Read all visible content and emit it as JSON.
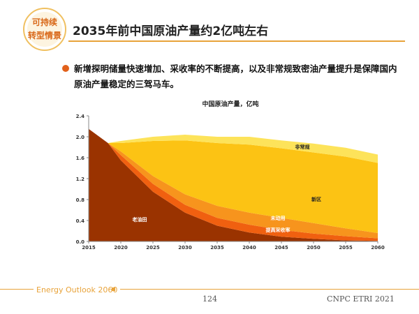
{
  "header": {
    "logo": [
      "可持续",
      "转型情景"
    ],
    "title": "2035年前中国原油产量约2亿吨左右"
  },
  "bullet": "新增探明储量快速增加、采收率的不断提高，以及非常规致密油产量提升是保障国内原油产量稳定的三驾马车。",
  "chart_data": {
    "type": "stacked_area",
    "title": "中国原油产量，亿吨",
    "x": [
      2015,
      2018,
      2020,
      2025,
      2030,
      2035,
      2040,
      2045,
      2050,
      2055,
      2060
    ],
    "xlim": [
      2015,
      2060
    ],
    "xticks": [
      2015,
      2020,
      2025,
      2030,
      2035,
      2040,
      2045,
      2050,
      2055,
      2060
    ],
    "ylim": [
      0,
      2.4
    ],
    "yticks": [
      {
        "value": 0,
        "label": "0.0"
      },
      0.4,
      0.8,
      1.2,
      1.6,
      {
        "value": 2,
        "label": "2.0"
      },
      2.4
    ],
    "series": [
      {
        "name": "老油田",
        "color": "#9a3300",
        "values": [
          2.15,
          1.88,
          1.55,
          0.95,
          0.55,
          0.3,
          0.17,
          0.09,
          0.05,
          0.02,
          0.01
        ]
      },
      {
        "name": "提高采收率",
        "color": "#f06010",
        "values": [
          0,
          0,
          0.1,
          0.15,
          0.15,
          0.15,
          0.15,
          0.13,
          0.1,
          0.08,
          0.05
        ]
      },
      {
        "name": "未动用",
        "color": "#f7941d",
        "values": [
          0,
          0,
          0.07,
          0.15,
          0.2,
          0.23,
          0.23,
          0.23,
          0.2,
          0.15,
          0.1
        ]
      },
      {
        "name": "新区",
        "color": "#fcc314",
        "values": [
          0,
          0,
          0.16,
          0.67,
          1.03,
          1.2,
          1.3,
          1.33,
          1.35,
          1.37,
          1.34
        ]
      },
      {
        "name": "非常规",
        "color": "#fde35a",
        "values": [
          0,
          0,
          0.04,
          0.08,
          0.11,
          0.12,
          0.15,
          0.15,
          0.17,
          0.17,
          0.16
        ]
      }
    ]
  },
  "footer": {
    "left": "Energy Outlook 2060",
    "page": "124",
    "right": "CNPC ETRI 2021"
  }
}
